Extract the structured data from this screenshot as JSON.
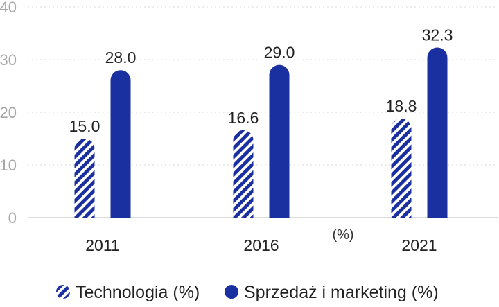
{
  "chart_data": {
    "type": "bar",
    "categories": [
      "2011",
      "2016",
      "2021"
    ],
    "series": [
      {
        "name": "Technologia (%)",
        "values": [
          15.0,
          16.6,
          18.8
        ],
        "color": "#1a2fa0",
        "pattern": "hatched"
      },
      {
        "name": "Sprzedaż i marketing (%)",
        "values": [
          28.0,
          29.0,
          32.3
        ],
        "color": "#1a2fa0",
        "pattern": "solid"
      }
    ],
    "ylim": [
      0,
      40
    ],
    "yticks": [
      "0",
      "10",
      "20",
      "30",
      "40"
    ],
    "unit_label": "(%)",
    "grid": true,
    "legend_position": "bottom"
  }
}
